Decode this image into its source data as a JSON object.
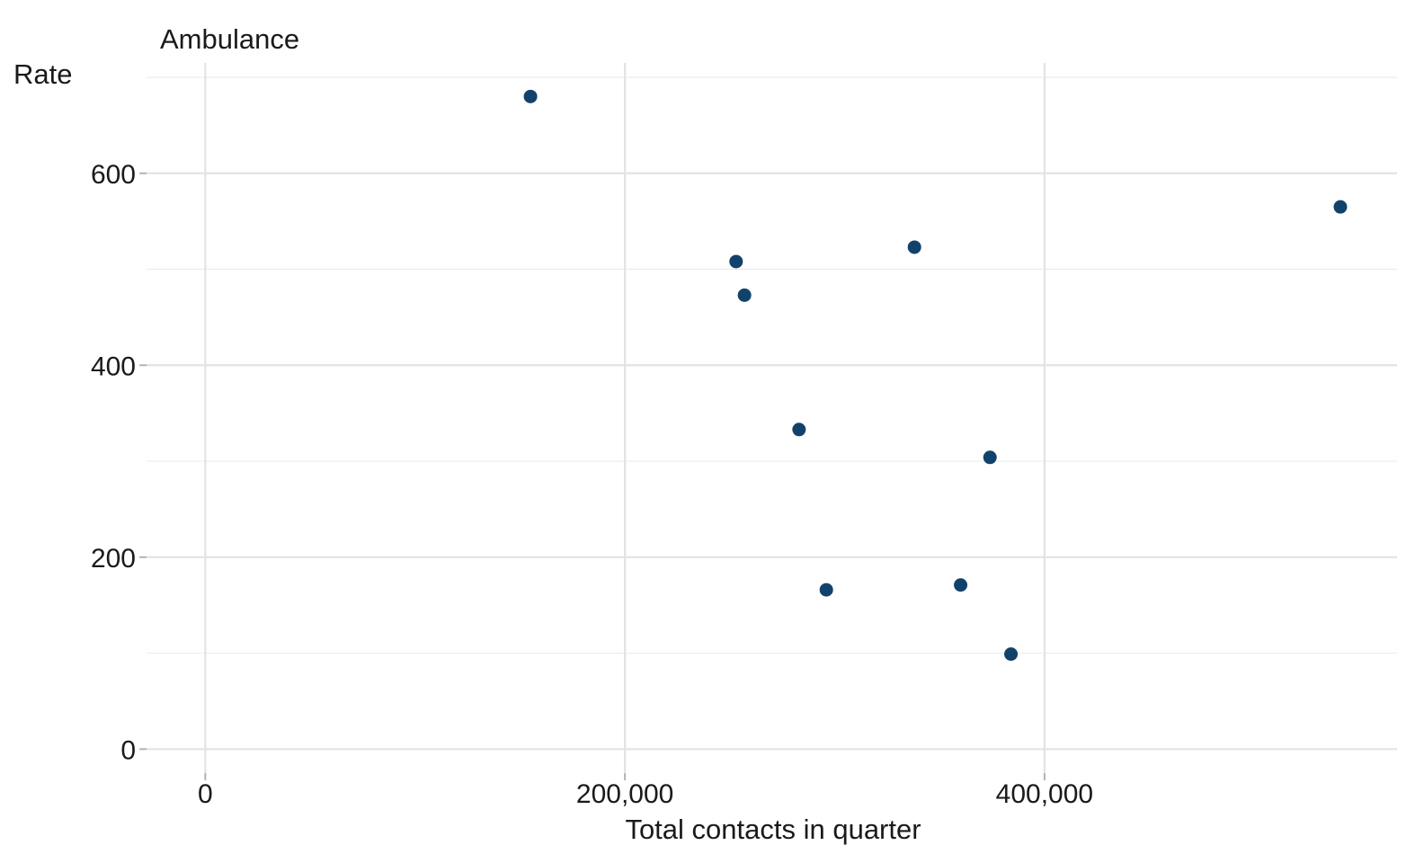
{
  "chart_data": {
    "type": "scatter",
    "title": "Ambulance",
    "xlabel": "Total contacts in quarter",
    "ylabel": "Rate",
    "xlim": [
      -28000,
      568000
    ],
    "ylim": [
      -25,
      715
    ],
    "x_ticks": [
      0,
      200000,
      400000
    ],
    "x_tick_labels": [
      "0",
      "200,000",
      "400,000"
    ],
    "y_ticks": [
      0,
      200,
      400,
      600
    ],
    "y_tick_labels": [
      "0",
      "200",
      "400",
      "600"
    ],
    "grid": true,
    "point_color": "#12426b",
    "points": [
      {
        "x": 155000,
        "y": 680
      },
      {
        "x": 253000,
        "y": 508
      },
      {
        "x": 257000,
        "y": 473
      },
      {
        "x": 283000,
        "y": 333
      },
      {
        "x": 296000,
        "y": 166
      },
      {
        "x": 338000,
        "y": 523
      },
      {
        "x": 360000,
        "y": 171
      },
      {
        "x": 374000,
        "y": 304
      },
      {
        "x": 384000,
        "y": 99
      },
      {
        "x": 541000,
        "y": 565
      }
    ]
  }
}
